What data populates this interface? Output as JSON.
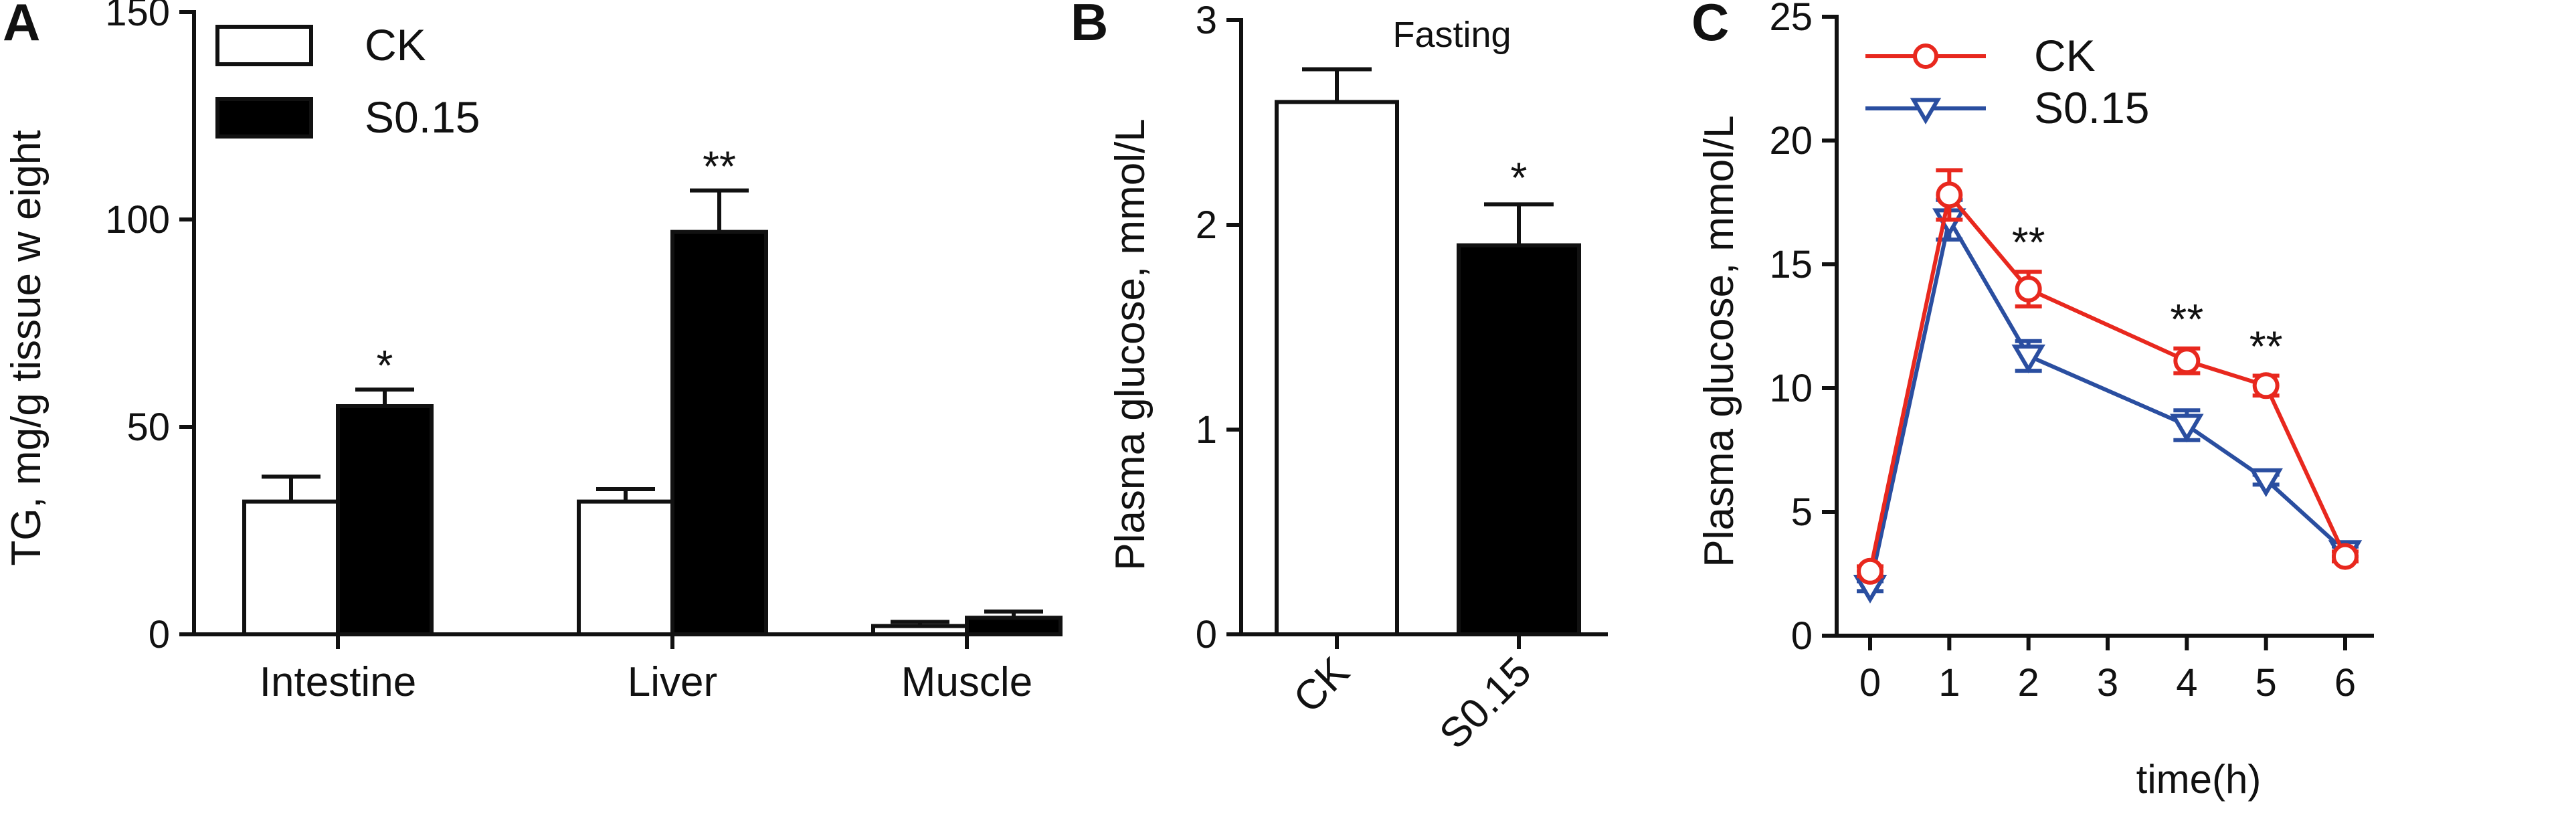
{
  "figure": {
    "panels": [
      {
        "letter": "A"
      },
      {
        "letter": "B"
      },
      {
        "letter": "C"
      }
    ]
  },
  "chart_data": [
    {
      "type": "bar",
      "panel": "A",
      "title": "",
      "xlabel": "",
      "ylabel": "TG, mg/g tissue w eight",
      "categories": [
        "Intestine",
        "Liver",
        "Muscle"
      ],
      "ylim": [
        0,
        150
      ],
      "yticks": [
        0,
        50,
        100,
        150
      ],
      "legend": {
        "placement": "top-left"
      },
      "series": [
        {
          "name": "CK",
          "values": [
            32,
            32,
            2
          ],
          "errors": [
            6,
            3,
            1
          ],
          "color": "#ffffff"
        },
        {
          "name": "S0.15",
          "values": [
            55,
            97,
            4
          ],
          "errors": [
            4,
            10,
            1.5
          ],
          "color": "#000000"
        }
      ],
      "annotations": [
        {
          "category": "Intestine",
          "series": "S0.15",
          "text": "*"
        },
        {
          "category": "Liver",
          "series": "S0.15",
          "text": "**"
        }
      ],
      "grid": false
    },
    {
      "type": "bar",
      "panel": "B",
      "title": "Fasting",
      "xlabel": "",
      "ylabel": "Plasma glucose, mmol/L",
      "categories": [
        "CK",
        "S0.15"
      ],
      "ylim": [
        0,
        3
      ],
      "yticks": [
        0,
        1,
        2,
        3
      ],
      "values": [
        2.6,
        1.9
      ],
      "errors": [
        0.16,
        0.2
      ],
      "colors": [
        "#ffffff",
        "#000000"
      ],
      "annotations": [
        {
          "category": "S0.15",
          "text": "*"
        }
      ],
      "grid": false
    },
    {
      "type": "line",
      "panel": "C",
      "title": "",
      "xlabel": "time(h)",
      "ylabel": "Plasma glucose, mmol/L",
      "x": [
        0,
        1,
        2,
        4,
        5,
        6
      ],
      "xlim": [
        0,
        6
      ],
      "xticks": [
        0,
        1,
        2,
        3,
        4,
        5,
        6
      ],
      "ylim": [
        0,
        25
      ],
      "yticks": [
        0,
        5,
        10,
        15,
        20,
        25
      ],
      "legend": {
        "placement": "top-left"
      },
      "series": [
        {
          "name": "CK",
          "values": [
            2.6,
            17.8,
            14.0,
            11.1,
            10.1,
            3.2
          ],
          "errors": [
            0.2,
            1.0,
            0.7,
            0.5,
            0.4,
            0.2
          ],
          "color": "#e8281e",
          "marker": "circle"
        },
        {
          "name": "S0.15",
          "values": [
            2.0,
            16.8,
            11.3,
            8.5,
            6.3,
            3.4
          ],
          "errors": [
            0.2,
            0.8,
            0.6,
            0.6,
            0.2,
            0.2
          ],
          "color": "#2a4ea0",
          "marker": "triangle-down"
        }
      ],
      "annotations": [
        {
          "x": 2,
          "text": "**"
        },
        {
          "x": 4,
          "text": "**"
        },
        {
          "x": 5,
          "text": "**"
        }
      ],
      "grid": false
    }
  ]
}
